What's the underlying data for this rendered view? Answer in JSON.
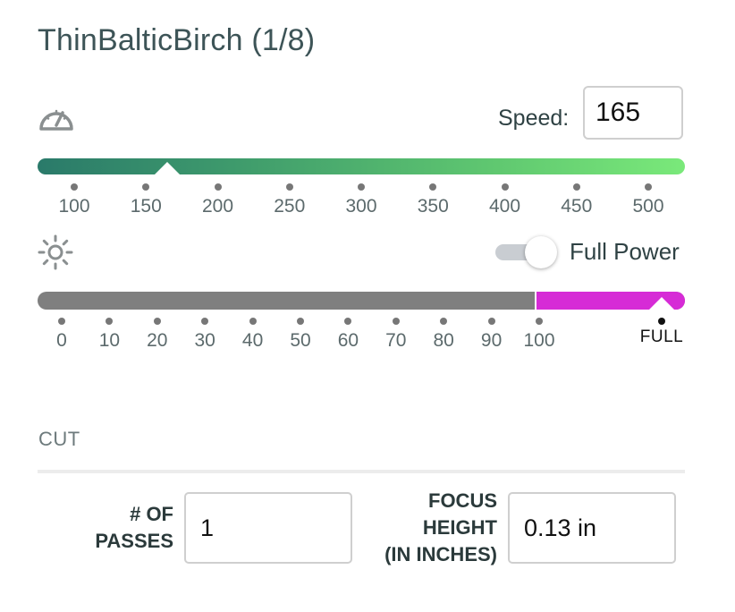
{
  "title": "ThinBalticBirch (1/8)",
  "speed": {
    "icon": "speedometer-icon",
    "label": "Speed:",
    "value": "165",
    "slider_min": 100,
    "slider_max": 500,
    "ticks": [
      "100",
      "150",
      "200",
      "250",
      "300",
      "350",
      "400",
      "450",
      "500"
    ],
    "gradient_colors": [
      "#2a7a6a",
      "#7ae97a"
    ]
  },
  "power": {
    "icon": "sun-icon",
    "full_power_label": "Full Power",
    "full_power_on": true,
    "level": "FULL",
    "ticks": [
      "0",
      "10",
      "20",
      "30",
      "40",
      "50",
      "60",
      "70",
      "80",
      "90",
      "100"
    ],
    "full_label": "FULL",
    "track_color": "#7f7f7f",
    "full_color": "#d62bd6"
  },
  "cut": {
    "section_label": "CUT",
    "passes_label": "# OF\nPASSES",
    "passes_value": "1",
    "focus_label": "FOCUS\nHEIGHT\n(IN INCHES)",
    "focus_value": "0.13 in"
  }
}
